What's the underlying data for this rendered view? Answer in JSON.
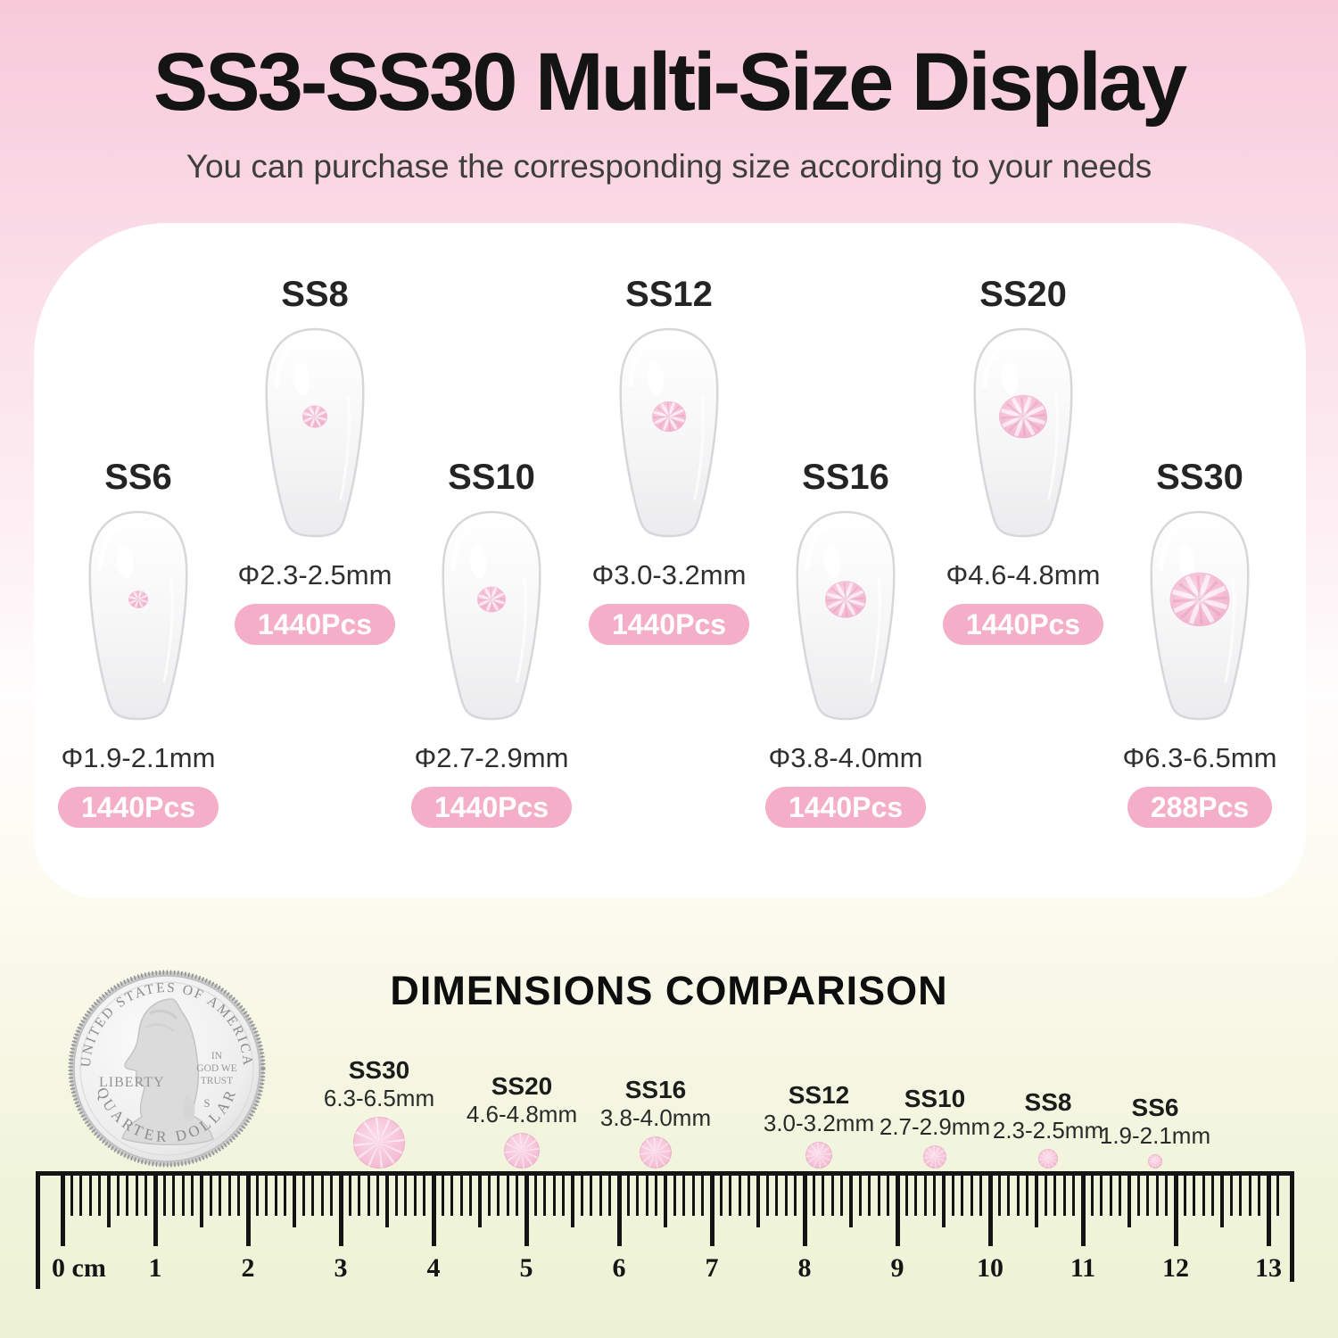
{
  "header": {
    "title": "SS3-SS30 Multi-Size Display",
    "subtitle": "You can purchase the corresponding size according to your needs"
  },
  "sizes": [
    {
      "code": "SS6",
      "diameter_label": "Φ1.9-2.1mm",
      "quantity_label": "1440Pcs",
      "row": "low",
      "gem_diameter": 22
    },
    {
      "code": "SS8",
      "diameter_label": "Φ2.3-2.5mm",
      "quantity_label": "1440Pcs",
      "row": "high",
      "gem_diameter": 28
    },
    {
      "code": "SS10",
      "diameter_label": "Φ2.7-2.9mm",
      "quantity_label": "1440Pcs",
      "row": "low",
      "gem_diameter": 32
    },
    {
      "code": "SS12",
      "diameter_label": "Φ3.0-3.2mm",
      "quantity_label": "1440Pcs",
      "row": "high",
      "gem_diameter": 38
    },
    {
      "code": "SS16",
      "diameter_label": "Φ3.8-4.0mm",
      "quantity_label": "1440Pcs",
      "row": "low",
      "gem_diameter": 46
    },
    {
      "code": "SS20",
      "diameter_label": "Φ4.6-4.8mm",
      "quantity_label": "1440Pcs",
      "row": "high",
      "gem_diameter": 54
    },
    {
      "code": "SS30",
      "diameter_label": "Φ6.3-6.5mm",
      "quantity_label": "288Pcs",
      "row": "low",
      "gem_diameter": 67
    }
  ],
  "comparison": {
    "title": "DIMENSIONS COMPARISON",
    "items": [
      {
        "code": "SS30",
        "range_label": "6.3-6.5mm",
        "dot_diameter": 58
      },
      {
        "code": "SS20",
        "range_label": "4.6-4.8mm",
        "dot_diameter": 40
      },
      {
        "code": "SS16",
        "range_label": "3.8-4.0mm",
        "dot_diameter": 36
      },
      {
        "code": "SS12",
        "range_label": "3.0-3.2mm",
        "dot_diameter": 30
      },
      {
        "code": "SS10",
        "range_label": "2.7-2.9mm",
        "dot_diameter": 26
      },
      {
        "code": "SS8",
        "range_label": "2.3-2.5mm",
        "dot_diameter": 22
      },
      {
        "code": "SS6",
        "range_label": "1.9-2.1mm",
        "dot_diameter": 16
      }
    ]
  },
  "coin": {
    "top_text": "UNITED STATES OF AMERICA",
    "left_text": "LIBERTY",
    "motto_lines": [
      "IN",
      "GOD WE",
      "TRUST"
    ],
    "mint_mark": "S",
    "bottom_text": "QUARTER DOLLAR"
  },
  "ruler": {
    "numbers": [
      "0 cm",
      "1",
      "2",
      "3",
      "4",
      "5",
      "6",
      "7",
      "8",
      "9",
      "10",
      "11",
      "12",
      "13"
    ]
  },
  "colors": {
    "badge_pink": "#f5aec7",
    "gem_pink": "#f6c3d8",
    "bg_top_pink": "#f8cada",
    "bg_bottom_green": "#edf2d6",
    "ruler_black": "#141414",
    "badge_text": "#ffffff"
  }
}
